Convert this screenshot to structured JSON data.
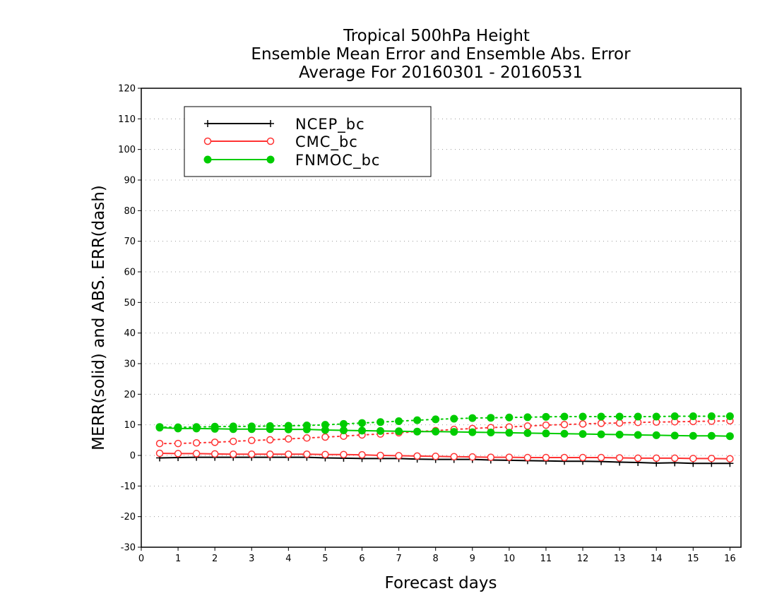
{
  "chart_data": {
    "type": "line",
    "title": [
      "Tropical 500hPa Height",
      "Ensemble Mean Error and Ensemble Abs. Error",
      "Average For 20160301 - 20160531"
    ],
    "xlabel": "Forecast days",
    "ylabel": "MERR(solid) and ABS. ERR(dash)",
    "xlim": [
      0,
      16.3
    ],
    "ylim": [
      -30,
      120
    ],
    "xticks": [
      0,
      1,
      2,
      3,
      4,
      5,
      6,
      7,
      8,
      9,
      10,
      11,
      12,
      13,
      14,
      15,
      16
    ],
    "yticks": [
      -30,
      -20,
      -10,
      0,
      10,
      20,
      30,
      40,
      50,
      60,
      70,
      80,
      90,
      100,
      110,
      120
    ],
    "grid": "dotted-horizontal",
    "legend_position": "top-left",
    "x": [
      0.5,
      1,
      1.5,
      2,
      2.5,
      3,
      3.5,
      4,
      4.5,
      5,
      5.5,
      6,
      6.5,
      7,
      7.5,
      8,
      8.5,
      9,
      9.5,
      10,
      10.5,
      11,
      11.5,
      12,
      12.5,
      13,
      13.5,
      14,
      14.5,
      15,
      15.5,
      16
    ],
    "series": [
      {
        "name": "NCEP_bc",
        "color": "#000000",
        "marker": "plus",
        "merr": [
          -0.8,
          -0.7,
          -0.6,
          -0.6,
          -0.6,
          -0.6,
          -0.6,
          -0.6,
          -0.6,
          -0.8,
          -0.9,
          -1.0,
          -1.0,
          -1.0,
          -1.2,
          -1.3,
          -1.3,
          -1.3,
          -1.5,
          -1.6,
          -1.7,
          -1.8,
          -1.9,
          -1.9,
          -2.0,
          -2.2,
          -2.3,
          -2.5,
          -2.4,
          -2.6,
          -2.6,
          -2.6
        ],
        "abs_err": null
      },
      {
        "name": "CMC_bc",
        "color": "#ff3333",
        "marker": "open-circle",
        "merr": [
          0.7,
          0.6,
          0.6,
          0.5,
          0.4,
          0.4,
          0.4,
          0.4,
          0.4,
          0.3,
          0.3,
          0.2,
          0.0,
          -0.1,
          -0.2,
          -0.3,
          -0.4,
          -0.5,
          -0.6,
          -0.6,
          -0.7,
          -0.7,
          -0.7,
          -0.7,
          -0.7,
          -0.8,
          -0.9,
          -0.9,
          -0.9,
          -1.0,
          -1.0,
          -1.1
        ],
        "abs_err": [
          3.9,
          3.9,
          4.1,
          4.3,
          4.6,
          4.9,
          5.1,
          5.4,
          5.7,
          6.0,
          6.3,
          6.7,
          7.0,
          7.4,
          7.8,
          8.1,
          8.5,
          8.8,
          9.1,
          9.3,
          9.6,
          9.9,
          10.1,
          10.3,
          10.5,
          10.6,
          10.8,
          10.9,
          11.0,
          11.1,
          11.2,
          11.3
        ]
      },
      {
        "name": "FNMOC_bc",
        "color": "#00cc00",
        "marker": "filled-circle",
        "merr": [
          9.1,
          8.8,
          8.8,
          8.7,
          8.6,
          8.6,
          8.6,
          8.5,
          8.5,
          8.3,
          8.2,
          8.1,
          8.0,
          7.9,
          7.8,
          7.8,
          7.7,
          7.6,
          7.5,
          7.4,
          7.3,
          7.2,
          7.1,
          7.0,
          6.9,
          6.8,
          6.7,
          6.6,
          6.5,
          6.4,
          6.4,
          6.3
        ],
        "abs_err": [
          9.3,
          9.2,
          9.3,
          9.4,
          9.5,
          9.5,
          9.6,
          9.7,
          9.8,
          10.0,
          10.3,
          10.6,
          10.9,
          11.2,
          11.5,
          11.8,
          12.0,
          12.2,
          12.3,
          12.4,
          12.5,
          12.6,
          12.7,
          12.7,
          12.7,
          12.7,
          12.7,
          12.7,
          12.8,
          12.8,
          12.8,
          12.8
        ]
      }
    ]
  }
}
